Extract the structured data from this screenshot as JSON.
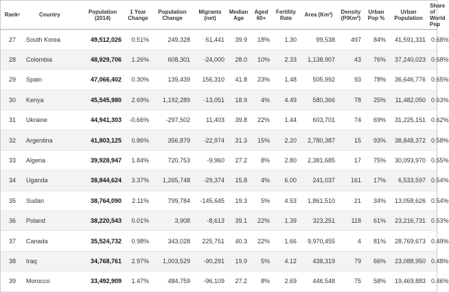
{
  "table": {
    "columns": [
      {
        "label": "Rank"
      },
      {
        "label": "Country"
      },
      {
        "label": "Population (2014)"
      },
      {
        "label": "1 Year Change"
      },
      {
        "label": "Population Change"
      },
      {
        "label": "Migrants (net)"
      },
      {
        "label": "Median Age"
      },
      {
        "label": "Aged 60+"
      },
      {
        "label": "Fertility Rate"
      },
      {
        "label": "Area (Km²)"
      },
      {
        "label": "Density (P/Km²)"
      },
      {
        "label": "Urban Pop %"
      },
      {
        "label": "Urban Population"
      },
      {
        "label": "Share of World Pop"
      }
    ],
    "rows": [
      [
        "27",
        "South Korea",
        "49,512,026",
        "0.51%",
        "249,328",
        "61,441",
        "39.9",
        "18%",
        "1.30",
        "99,538",
        "497",
        "84%",
        "41,591,331",
        "0.68%"
      ],
      [
        "28",
        "Colombia",
        "48,929,706",
        "1.26%",
        "608,301",
        "-24,000",
        "28.0",
        "10%",
        "2.33",
        "1,138,907",
        "43",
        "76%",
        "37,240,023",
        "0.68%"
      ],
      [
        "29",
        "Spain",
        "47,066,402",
        "0.30%",
        "139,439",
        "156,310",
        "41.8",
        "23%",
        "1.48",
        "505,992",
        "93",
        "78%",
        "36,646,776",
        "0.65%"
      ],
      [
        "30",
        "Kenya",
        "45,545,980",
        "2.69%",
        "1,192,289",
        "-13,051",
        "18.9",
        "4%",
        "4.49",
        "580,366",
        "78",
        "25%",
        "11,482,050",
        "0.63%"
      ],
      [
        "31",
        "Ukraine",
        "44,941,303",
        "-0.66%",
        "-297,502",
        "11,403",
        "39.8",
        "22%",
        "1.44",
        "603,701",
        "74",
        "69%",
        "31,225,151",
        "0.62%"
      ],
      [
        "32",
        "Argentina",
        "41,803,125",
        "0.86%",
        "356,879",
        "-22,974",
        "31.3",
        "15%",
        "2.20",
        "2,780,387",
        "15",
        "93%",
        "38,848,372",
        "0.58%"
      ],
      [
        "33",
        "Algeria",
        "39,928,947",
        "1.84%",
        "720,753",
        "-9,960",
        "27.2",
        "8%",
        "2.80",
        "2,381,685",
        "17",
        "75%",
        "30,093,970",
        "0.55%"
      ],
      [
        "34",
        "Uganda",
        "38,844,624",
        "3.37%",
        "1,265,748",
        "-29,374",
        "15.8",
        "4%",
        "6.00",
        "241,037",
        "161",
        "17%",
        "6,533,597",
        "0.54%"
      ],
      [
        "35",
        "Sudan",
        "38,764,090",
        "2.11%",
        "799,784",
        "-145,645",
        "19.3",
        "5%",
        "4.53",
        "1,861,510",
        "21",
        "34%",
        "13,058,626",
        "0.54%"
      ],
      [
        "36",
        "Poland",
        "38,220,543",
        "0.01%",
        "3,908",
        "-8,613",
        "39.1",
        "22%",
        "1.39",
        "323,251",
        "118",
        "61%",
        "23,216,731",
        "0.53%"
      ],
      [
        "37",
        "Canada",
        "35,524,732",
        "0.98%",
        "343,028",
        "225,751",
        "40.3",
        "22%",
        "1.66",
        "9,970,455",
        "4",
        "81%",
        "28,769,673",
        "0.49%"
      ],
      [
        "38",
        "Iraq",
        "34,768,761",
        "2.97%",
        "1,003,529",
        "-90,291",
        "19.9",
        "5%",
        "4.12",
        "438,319",
        "79",
        "66%",
        "23,088,950",
        "0.48%"
      ],
      [
        "39",
        "Morocco",
        "33,492,909",
        "1.47%",
        "484,759",
        "-96,109",
        "27.2",
        "8%",
        "2.69",
        "446,548",
        "75",
        "58%",
        "19,469,883",
        "0.46%"
      ]
    ]
  }
}
